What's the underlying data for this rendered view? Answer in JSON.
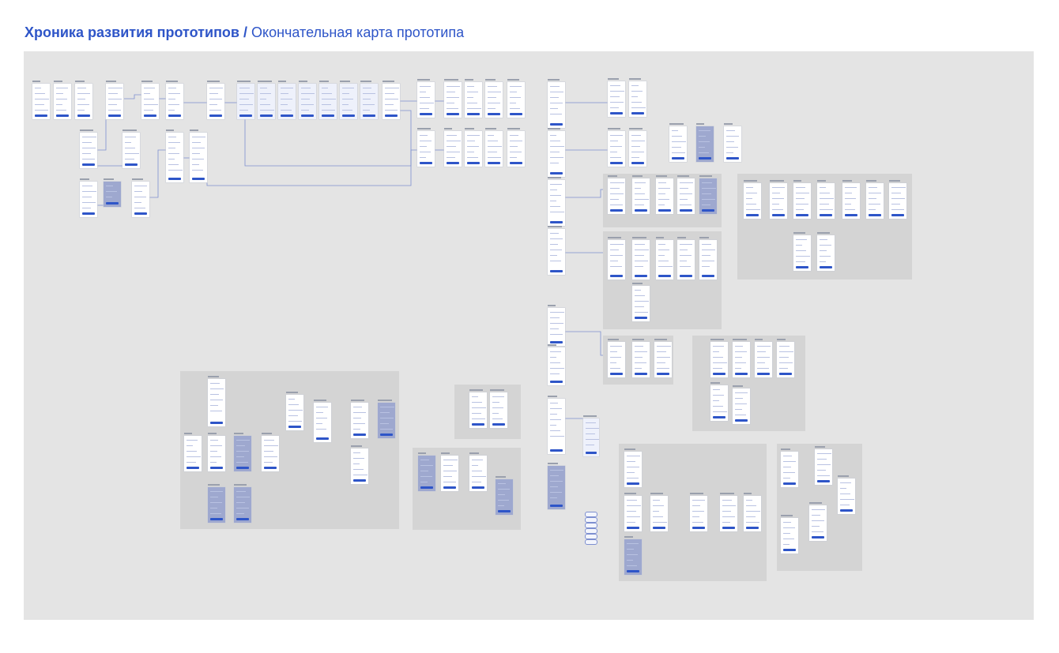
{
  "header": {
    "title_bold": "Хроника развития прототипов /",
    "title_regular": " Окончательная карта прототипа"
  },
  "colors": {
    "accent": "#2e55c8",
    "canvas": "#e4e4e4",
    "group": "#d4d4d4",
    "connector": "#7d8fd0"
  }
}
